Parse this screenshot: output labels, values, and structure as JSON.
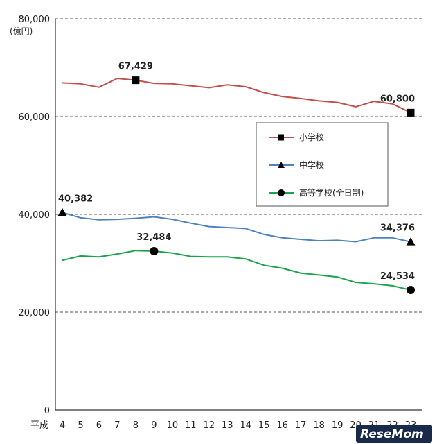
{
  "chart_data": {
    "type": "line",
    "ylabel": "(億円)",
    "ylim": [
      0,
      80000
    ],
    "yticks": [
      0,
      20000,
      40000,
      60000,
      80000
    ],
    "ytick_labels": [
      "0",
      "20,000",
      "40,000",
      "60,000",
      "80,000"
    ],
    "x_prefix": "平成",
    "x": [
      4,
      5,
      6,
      7,
      8,
      9,
      10,
      11,
      12,
      13,
      14,
      15,
      16,
      17,
      18,
      19,
      20,
      21,
      22,
      23
    ],
    "x_labels": [
      "4",
      "5",
      "6",
      "7",
      "8",
      "9",
      "10",
      "11",
      "12",
      "13",
      "14",
      "15",
      "16",
      "17",
      "18",
      "19",
      "20",
      "21",
      "22",
      "23"
    ],
    "grid": "horizontal-dashed",
    "legend_position": "right-middle",
    "series": [
      {
        "name": "小学校",
        "color": "#c0504d",
        "marker": "square",
        "values": [
          66900,
          66700,
          66000,
          67800,
          67429,
          66800,
          66700,
          66300,
          65900,
          66500,
          66100,
          64900,
          64100,
          63700,
          63200,
          62900,
          62000,
          63100,
          62600,
          60800
        ],
        "labels": [
          {
            "x": 8,
            "text": "67,429"
          },
          {
            "x": 23,
            "text": "60,800"
          }
        ]
      },
      {
        "name": "中学校",
        "color": "#4f81bd",
        "marker": "triangle",
        "values": [
          40382,
          39300,
          38900,
          39000,
          39200,
          39500,
          39000,
          38200,
          37500,
          37300,
          37100,
          35900,
          35200,
          34900,
          34600,
          34700,
          34400,
          35200,
          35200,
          34376
        ],
        "labels": [
          {
            "x": 4,
            "text": "40,382"
          },
          {
            "x": 23,
            "text": "34,376"
          }
        ]
      },
      {
        "name": "高等学校(全日制)",
        "color": "#1aa34a",
        "marker": "circle",
        "values": [
          30600,
          31500,
          31300,
          31900,
          32600,
          32484,
          32100,
          31400,
          31300,
          31300,
          30900,
          29600,
          29000,
          28000,
          27600,
          27200,
          26100,
          25800,
          25400,
          24534
        ],
        "labels": [
          {
            "x": 9,
            "text": "32,484"
          },
          {
            "x": 23,
            "text": "24,534"
          }
        ]
      }
    ]
  },
  "watermark": "ReseMom"
}
